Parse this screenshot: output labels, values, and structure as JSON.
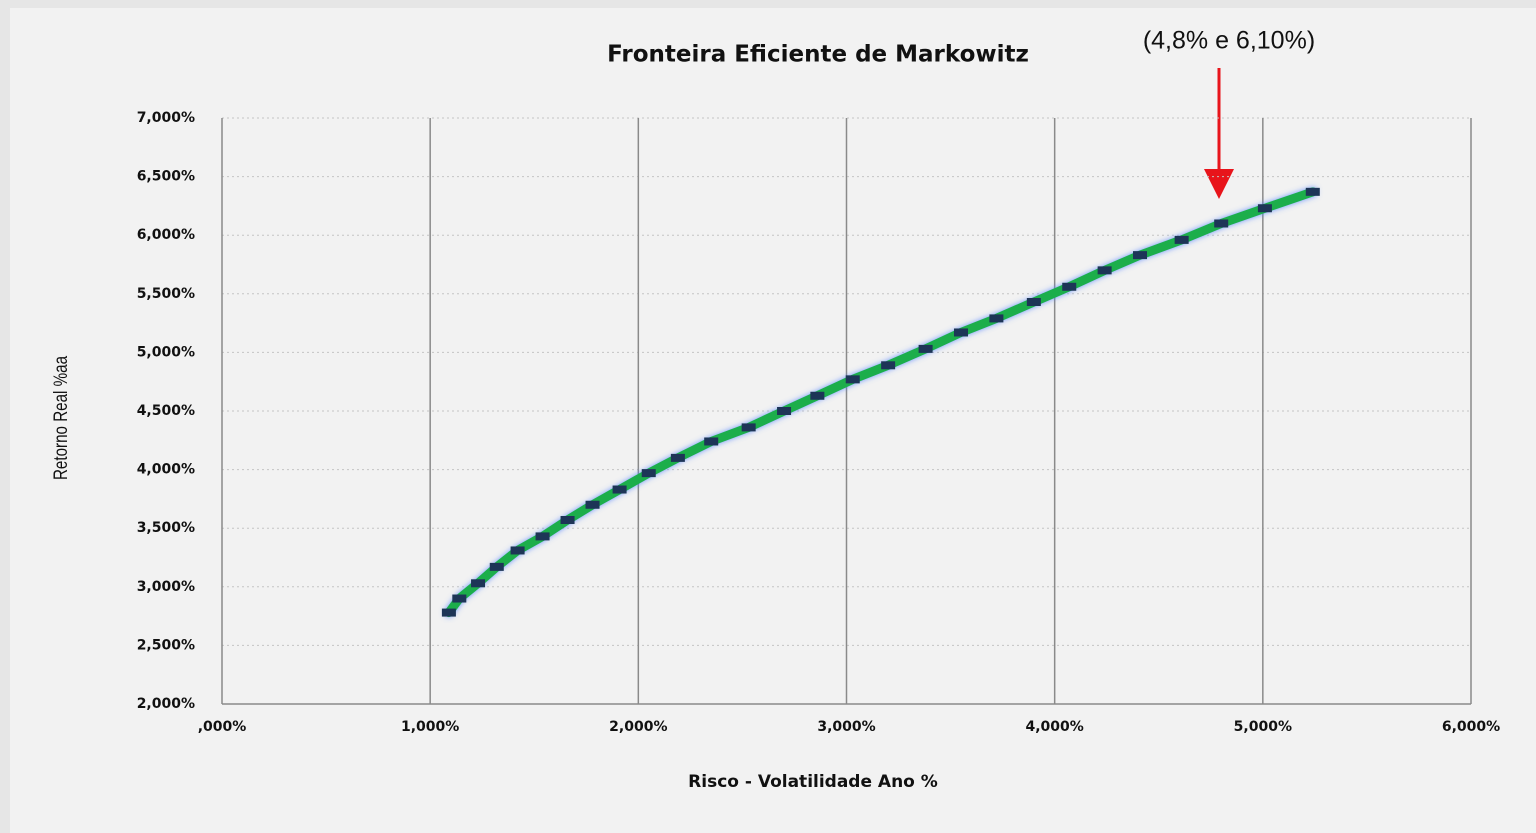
{
  "chart_data": {
    "type": "line",
    "title": "Fronteira Eficiente de Markowitz",
    "annotation": "(4,8% e 6,10%)",
    "xlabel": "Risco - Volatilidade Ano %",
    "ylabel": "Retorno Real %aa",
    "x": [
      1.09,
      1.14,
      1.23,
      1.32,
      1.42,
      1.54,
      1.66,
      1.78,
      1.91,
      2.05,
      2.19,
      2.35,
      2.53,
      2.7,
      2.86,
      3.03,
      3.2,
      3.38,
      3.55,
      3.72,
      3.9,
      4.07,
      4.24,
      4.41,
      4.61,
      4.8,
      5.01,
      5.24
    ],
    "values": [
      2.78,
      2.9,
      3.03,
      3.17,
      3.31,
      3.43,
      3.57,
      3.7,
      3.83,
      3.97,
      4.1,
      4.24,
      4.36,
      4.5,
      4.63,
      4.77,
      4.89,
      5.03,
      5.17,
      5.29,
      5.43,
      5.56,
      5.7,
      5.83,
      5.96,
      6.1,
      6.23,
      6.37
    ],
    "color": "#1fae4b",
    "marker_color": "#1d3557",
    "xlim": [
      0,
      6
    ],
    "xticks": [
      {
        "value": 0,
        "label": ",000%"
      },
      {
        "value": 1,
        "label": "1,000%"
      },
      {
        "value": 2,
        "label": "2,000%"
      },
      {
        "value": 3,
        "label": "3,000%"
      },
      {
        "value": 4,
        "label": "4,000%"
      },
      {
        "value": 5,
        "label": "5,000%"
      },
      {
        "value": 6,
        "label": "6,000%"
      }
    ],
    "ylim": [
      2,
      7
    ],
    "yticks": [
      {
        "value": 2,
        "label": "2,000%"
      },
      {
        "value": 2.5,
        "label": "2,500%"
      },
      {
        "value": 3,
        "label": "3,000%"
      },
      {
        "value": 3.5,
        "label": "3,500%"
      },
      {
        "value": 4,
        "label": "4,000%"
      },
      {
        "value": 4.5,
        "label": "4,500%"
      },
      {
        "value": 5,
        "label": "5,000%"
      },
      {
        "value": 5.5,
        "label": "5,500%"
      },
      {
        "value": 6,
        "label": "6,000%"
      },
      {
        "value": 6.5,
        "label": "6,500%"
      },
      {
        "value": 7,
        "label": "7,000%"
      }
    ],
    "grid": true
  }
}
